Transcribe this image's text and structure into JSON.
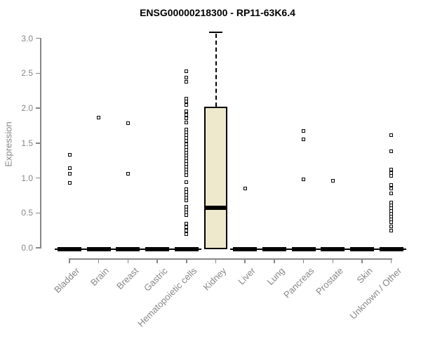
{
  "chart_data": {
    "type": "boxplot",
    "title": "ENSG00000218300 - RP11-63K6.4",
    "xlabel": "",
    "ylabel": "Expression",
    "ylim": [
      0,
      3.1
    ],
    "y_ticks": [
      0.0,
      0.5,
      1.0,
      1.5,
      2.0,
      2.5,
      3.0
    ],
    "grid": false,
    "legend": "none",
    "categories": [
      "Bladder",
      "Brain",
      "Breast",
      "Gastric",
      "Hematopoietic cells",
      "Kidney",
      "Liver",
      "Lung",
      "Pancreas",
      "Prostate",
      "Skin",
      "Unknown / Other"
    ],
    "series": [
      {
        "name": "Bladder",
        "box": {
          "whisker_low": 0,
          "q1": 0,
          "median": 0,
          "q3": 0,
          "whisker_high": 0
        },
        "points": [
          1.33,
          1.14,
          1.06,
          0.93
        ]
      },
      {
        "name": "Brain",
        "box": {
          "whisker_low": 0,
          "q1": 0,
          "median": 0,
          "q3": 0,
          "whisker_high": 0
        },
        "points": [
          1.86
        ]
      },
      {
        "name": "Breast",
        "box": {
          "whisker_low": 0,
          "q1": 0,
          "median": 0,
          "q3": 0,
          "whisker_high": 0
        },
        "points": [
          1.78,
          1.06
        ]
      },
      {
        "name": "Gastric",
        "box": {
          "whisker_low": 0,
          "q1": 0,
          "median": 0,
          "q3": 0,
          "whisker_high": 0
        },
        "points": []
      },
      {
        "name": "Hematopoietic cells",
        "box": {
          "whisker_low": 0,
          "q1": 0,
          "median": 0,
          "q3": 0,
          "whisker_high": 0
        },
        "points": [
          2.53,
          2.44,
          2.38,
          2.14,
          2.1,
          2.05,
          1.95,
          1.9,
          1.85,
          1.79,
          1.69,
          1.65,
          1.61,
          1.57,
          1.53,
          1.48,
          1.44,
          1.4,
          1.36,
          1.32,
          1.28,
          1.24,
          1.2,
          1.16,
          1.12,
          1.08,
          1.04,
          0.94,
          0.84,
          0.8,
          0.76,
          0.72,
          0.68,
          0.59,
          0.55,
          0.51,
          0.47,
          0.35,
          0.3,
          0.25,
          0.2
        ]
      },
      {
        "name": "Kidney",
        "box": {
          "whisker_low": 0,
          "q1": 0,
          "median": 0.57,
          "q3": 2.02,
          "whisker_high": 3.1
        },
        "points": []
      },
      {
        "name": "Liver",
        "box": {
          "whisker_low": 0,
          "q1": 0,
          "median": 0,
          "q3": 0,
          "whisker_high": 0
        },
        "points": [
          0.85
        ]
      },
      {
        "name": "Lung",
        "box": {
          "whisker_low": 0,
          "q1": 0,
          "median": 0,
          "q3": 0,
          "whisker_high": 0
        },
        "points": []
      },
      {
        "name": "Pancreas",
        "box": {
          "whisker_low": 0,
          "q1": 0,
          "median": 0,
          "q3": 0,
          "whisker_high": 0
        },
        "points": [
          1.67,
          1.55,
          0.98
        ]
      },
      {
        "name": "Prostate",
        "box": {
          "whisker_low": 0,
          "q1": 0,
          "median": 0,
          "q3": 0,
          "whisker_high": 0
        },
        "points": [
          0.96
        ]
      },
      {
        "name": "Skin",
        "box": {
          "whisker_low": 0,
          "q1": 0,
          "median": 0,
          "q3": 0,
          "whisker_high": 0
        },
        "points": []
      },
      {
        "name": "Unknown / Other",
        "box": {
          "whisker_low": 0,
          "q1": 0,
          "median": 0,
          "q3": 0,
          "whisker_high": 0
        },
        "points": [
          1.61,
          1.38,
          1.12,
          1.07,
          1.03,
          0.9,
          0.85,
          0.78,
          0.65,
          0.61,
          0.57,
          0.53,
          0.49,
          0.45,
          0.41,
          0.37,
          0.31,
          0.25
        ]
      }
    ]
  },
  "colors": {
    "box_fill": "#EEE8CD",
    "box_border": "#000000",
    "axis": "#878787",
    "title_text": "#000000",
    "point_border": "#000000",
    "background": "#FFFFFF"
  }
}
